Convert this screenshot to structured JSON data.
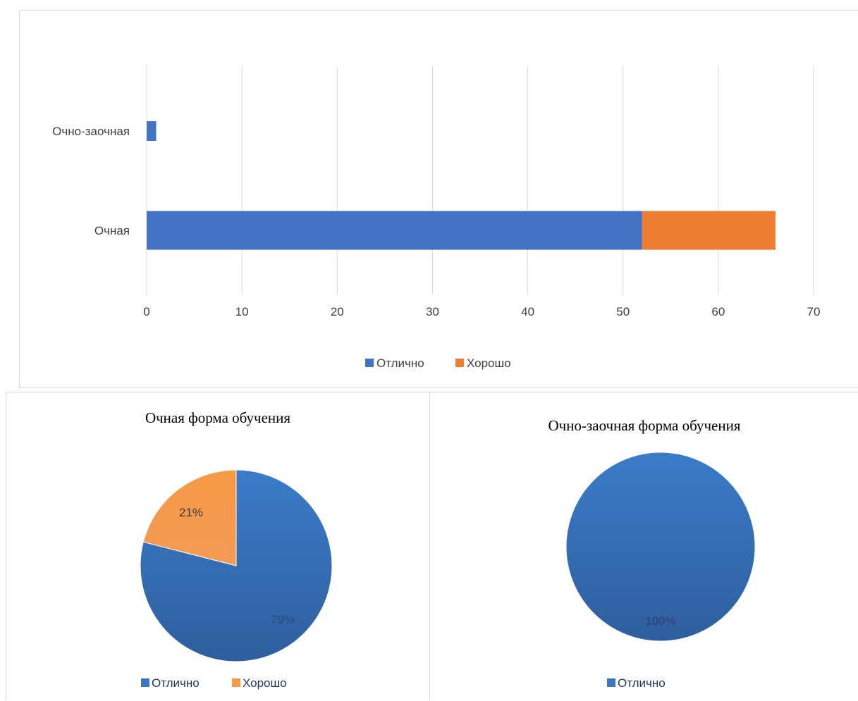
{
  "colors": {
    "excellent": "#4472c4",
    "good": "#ed7d31",
    "pie_excellent": "#3a76c4",
    "pie_good": "#f59a47",
    "grid": "#d9d9d9",
    "text": "#404040"
  },
  "chart_data": [
    {
      "type": "bar",
      "orientation": "horizontal",
      "stacked": true,
      "title": "",
      "categories": [
        "Очно-заочная",
        "Очная"
      ],
      "series": [
        {
          "name": "Отлично",
          "values": [
            1,
            52
          ],
          "color": "#4472c4"
        },
        {
          "name": "Хорошо",
          "values": [
            0,
            14
          ],
          "color": "#ed7d31"
        }
      ],
      "xlim": [
        0,
        70
      ],
      "xticks": [
        "0",
        "10",
        "20",
        "30",
        "40",
        "50",
        "60",
        "70"
      ],
      "grid": "vertical",
      "legend": "bottom"
    },
    {
      "type": "pie",
      "title": "Очная форма обучения",
      "labels": [
        "Отлично",
        "Хорошо"
      ],
      "values": [
        79,
        21
      ],
      "data_labels": [
        "79%",
        "21%"
      ],
      "colors": [
        "#3a76c4",
        "#f59a47"
      ],
      "legend": "bottom"
    },
    {
      "type": "pie",
      "title": "Очно-заочная форма обучения",
      "labels": [
        "Отлично"
      ],
      "values": [
        100
      ],
      "data_labels": [
        "100%"
      ],
      "colors": [
        "#3a76c4"
      ],
      "legend": "bottom"
    }
  ]
}
